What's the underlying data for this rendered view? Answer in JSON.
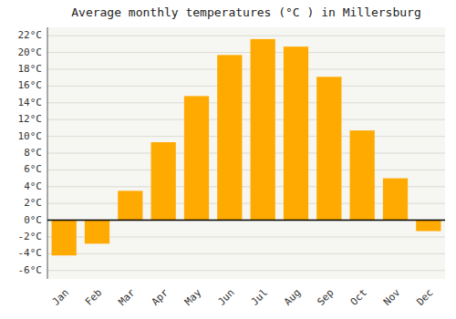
{
  "chart_data": {
    "type": "bar",
    "title": "Average monthly temperatures (°C ) in Millersburg",
    "categories": [
      "Jan",
      "Feb",
      "Mar",
      "Apr",
      "May",
      "Jun",
      "Jul",
      "Aug",
      "Sep",
      "Oct",
      "Nov",
      "Dec"
    ],
    "values": [
      -4.2,
      -2.8,
      3.5,
      9.3,
      14.8,
      19.7,
      21.6,
      20.7,
      17.1,
      10.7,
      5.0,
      -1.3
    ],
    "color": "#FFAA00",
    "ylim": [
      -7,
      23
    ],
    "yticks": [
      {
        "value": -6,
        "label": "-6°C"
      },
      {
        "value": -4,
        "label": "-4°C"
      },
      {
        "value": -2,
        "label": "-2°C"
      },
      {
        "value": 0,
        "label": "0°C"
      },
      {
        "value": 2,
        "label": "2°C"
      },
      {
        "value": 4,
        "label": "4°C"
      },
      {
        "value": 6,
        "label": "6°C"
      },
      {
        "value": 8,
        "label": "8°C"
      },
      {
        "value": 10,
        "label": "10°C"
      },
      {
        "value": 12,
        "label": "12°C"
      },
      {
        "value": 14,
        "label": "14°C"
      },
      {
        "value": 16,
        "label": "16°C"
      },
      {
        "value": 18,
        "label": "18°C"
      },
      {
        "value": 20,
        "label": "20°C"
      },
      {
        "value": 22,
        "label": "22°C"
      }
    ],
    "grid": true
  }
}
